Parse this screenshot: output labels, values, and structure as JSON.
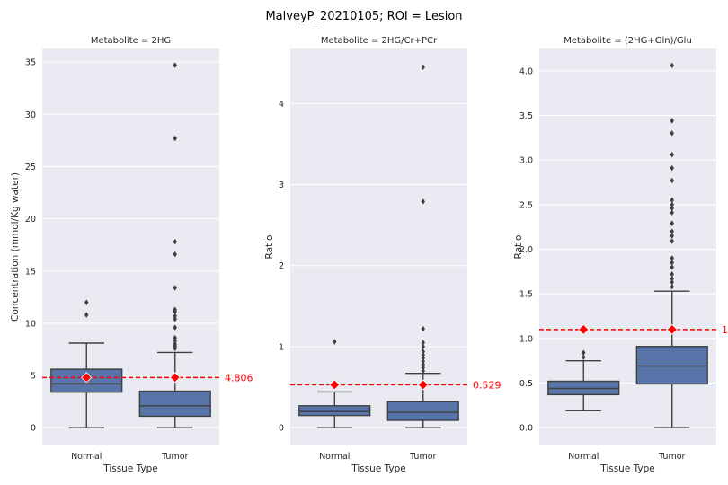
{
  "figure": {
    "suptitle": "MalveyP_20210105; ROI = Lesion"
  },
  "colors": {
    "background": "#eaeaf2",
    "grid": "#ffffff",
    "box_fill": "#5874a9",
    "box_edge": "#3f3f3f",
    "reference": "#ff0000",
    "text": "#262626"
  },
  "chart_data": [
    {
      "type": "box",
      "title": "Metabolite =  2HG",
      "xlabel": "Tissue Type",
      "ylabel": "Concentration (mmol/Kg water)",
      "ylim": [
        -1.7,
        36.3
      ],
      "yticks": [
        0,
        5,
        10,
        15,
        20,
        25,
        30,
        35
      ],
      "ytick_labels": [
        "0",
        "5",
        "10",
        "15",
        "20",
        "25",
        "30",
        "35"
      ],
      "categories": [
        "Normal",
        "Tumor"
      ],
      "boxes": [
        {
          "category": "Normal",
          "whisker_low": 0.0,
          "q1": 3.4,
          "median": 4.2,
          "q3": 5.6,
          "whisker_high": 8.1,
          "outliers": [
            10.8,
            12.0
          ]
        },
        {
          "category": "Tumor",
          "whisker_low": 0.0,
          "q1": 1.1,
          "median": 2.1,
          "q3": 3.5,
          "whisker_high": 7.2,
          "outliers": [
            7.6,
            7.8,
            8.0,
            8.3,
            8.6,
            9.6,
            10.4,
            10.7,
            11.1,
            11.3,
            13.4,
            16.6,
            17.8,
            27.7,
            34.7
          ]
        }
      ],
      "reference": {
        "value": 4.806,
        "label": "4.806"
      }
    },
    {
      "type": "box",
      "title": "Metabolite =  2HG/Cr+PCr",
      "xlabel": "Tissue Type",
      "ylabel": "Ratio",
      "ylim": [
        -0.22,
        4.68
      ],
      "yticks": [
        0,
        1,
        2,
        3,
        4
      ],
      "ytick_labels": [
        "0",
        "1",
        "2",
        "3",
        "4"
      ],
      "categories": [
        "Normal",
        "Tumor"
      ],
      "boxes": [
        {
          "category": "Normal",
          "whisker_low": 0.0,
          "q1": 0.15,
          "median": 0.2,
          "q3": 0.27,
          "whisker_high": 0.44,
          "outliers": [
            1.06
          ]
        },
        {
          "category": "Tumor",
          "whisker_low": 0.0,
          "q1": 0.09,
          "median": 0.19,
          "q3": 0.32,
          "whisker_high": 0.67,
          "outliers": [
            0.7,
            0.74,
            0.78,
            0.82,
            0.86,
            0.9,
            0.94,
            1.0,
            1.05,
            1.22,
            2.79,
            4.45
          ]
        }
      ],
      "reference": {
        "value": 0.529,
        "label": "0.529"
      }
    },
    {
      "type": "box",
      "title": "Metabolite = (2HG+Gln)/Glu",
      "xlabel": "Tissue Type",
      "ylabel": "Ratio",
      "ylim": [
        -0.2,
        4.25
      ],
      "yticks": [
        0.0,
        0.5,
        1.0,
        1.5,
        2.0,
        2.5,
        3.0,
        3.5,
        4.0
      ],
      "ytick_labels": [
        "0.0",
        "0.5",
        "1.0",
        "1.5",
        "2.0",
        "2.5",
        "3.0",
        "3.5",
        "4.0"
      ],
      "categories": [
        "Normal",
        "Tumor"
      ],
      "boxes": [
        {
          "category": "Normal",
          "whisker_low": 0.19,
          "q1": 0.37,
          "median": 0.44,
          "q3": 0.52,
          "whisker_high": 0.75,
          "outliers": [
            0.79,
            0.84
          ]
        },
        {
          "category": "Tumor",
          "whisker_low": 0.0,
          "q1": 0.49,
          "median": 0.69,
          "q3": 0.91,
          "whisker_high": 1.53,
          "outliers": [
            1.58,
            1.63,
            1.67,
            1.72,
            1.8,
            1.85,
            1.9,
            2.09,
            2.15,
            2.2,
            2.29,
            2.41,
            2.46,
            2.5,
            2.55,
            2.77,
            2.91,
            3.06,
            3.3,
            3.44,
            4.06
          ]
        }
      ],
      "reference": {
        "value": 1.1,
        "label": "1"
      }
    }
  ]
}
